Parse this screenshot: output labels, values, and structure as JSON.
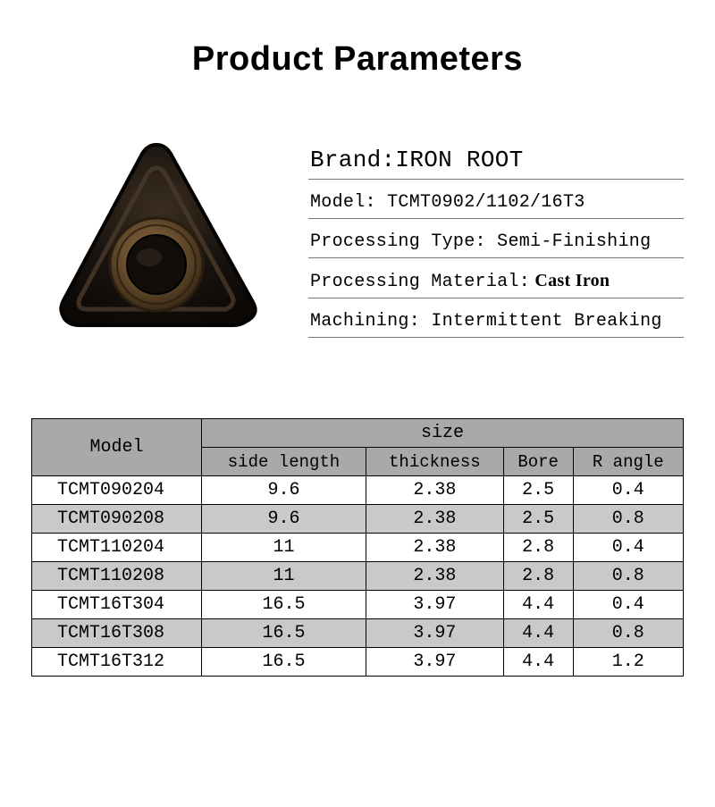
{
  "title": "Product Parameters",
  "specs": {
    "brand_label": "Brand:",
    "brand_value": "IRON ROOT",
    "model_label": "Model:",
    "model_value": " TCMT0902/1102/16T3",
    "ptype_label": "Processing Type:",
    "ptype_value": " Semi-Finishing",
    "pmat_label": "Processing Material:",
    "pmat_value": " Cast Iron",
    "mach_label": "Machining:",
    "mach_value": " Intermittent Breaking"
  },
  "table": {
    "header_model": "Model",
    "header_size": "size",
    "sub_side": "side length",
    "sub_thick": "thickness",
    "sub_bore": "Bore",
    "sub_r": "R angle",
    "rows": [
      {
        "model": "TCMT090204",
        "side": "9.6",
        "thick": "2.38",
        "bore": "2.5",
        "r": "0.4",
        "alt": false
      },
      {
        "model": "TCMT090208",
        "side": "9.6",
        "thick": "2.38",
        "bore": "2.5",
        "r": "0.8",
        "alt": true
      },
      {
        "model": "TCMT110204",
        "side": "11",
        "thick": "2.38",
        "bore": "2.8",
        "r": "0.4",
        "alt": false
      },
      {
        "model": "TCMT110208",
        "side": "11",
        "thick": "2.38",
        "bore": "2.8",
        "r": "0.8",
        "alt": true
      },
      {
        "model": "TCMT16T304",
        "side": "16.5",
        "thick": "3.97",
        "bore": "4.4",
        "r": "0.4",
        "alt": false
      },
      {
        "model": "TCMT16T308",
        "side": "16.5",
        "thick": "3.97",
        "bore": "4.4",
        "r": "0.8",
        "alt": true
      },
      {
        "model": "TCMT16T312",
        "side": "16.5",
        "thick": "3.97",
        "bore": "4.4",
        "r": "1.2",
        "alt": false
      }
    ]
  },
  "image": {
    "outer_fill": "#1a1410",
    "outer_edge_dark": "#0b0805",
    "outer_highlight": "#4a3a2a",
    "inner_ring_outer": "#6b5030",
    "inner_ring_mid": "#4a3620",
    "hole_dark": "#120d08"
  }
}
